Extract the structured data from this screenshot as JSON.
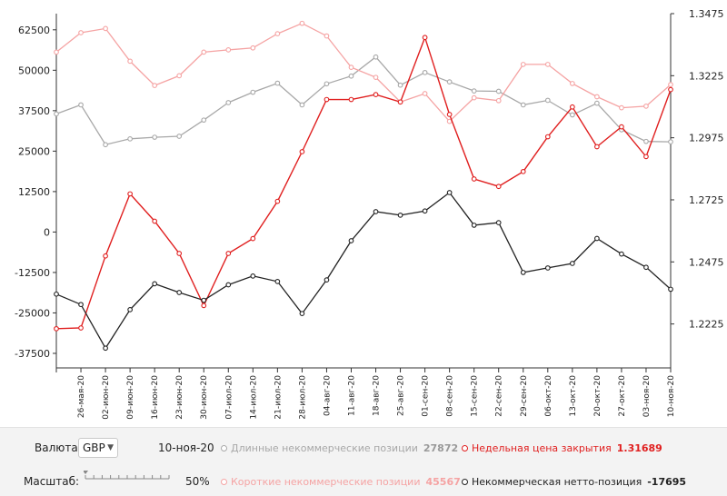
{
  "chart_data": {
    "type": "line",
    "title": "",
    "xlabel": "",
    "ylabel": "",
    "x": [
      "",
      "26-мая-20",
      "02-июн-20",
      "09-июн-20",
      "16-июн-20",
      "23-июн-20",
      "30-июн-20",
      "07-июл-20",
      "14-июл-20",
      "21-июл-20",
      "28-июл-20",
      "04-авг-20",
      "11-авг-20",
      "18-авг-20",
      "25-авг-20",
      "01-сен-20",
      "08-сен-20",
      "15-сен-20",
      "22-сен-20",
      "29-сен-20",
      "06-окт-20",
      "13-окт-20",
      "20-окт-20",
      "27-окт-20",
      "03-ноя-20",
      "10-ноя-20"
    ],
    "y_left": {
      "lim": [
        -42000,
        67500
      ],
      "ticks": [
        62500,
        50000,
        37500,
        25000,
        12500,
        0,
        -12500,
        -25000,
        -37500
      ],
      "tick_labels": [
        "62500",
        "50000",
        "37500",
        "25000",
        "12500",
        "0",
        "-12500",
        "-25000",
        "-37500"
      ]
    },
    "y_right": {
      "lim": [
        1.2048,
        1.3475
      ],
      "ticks": [
        1.3475,
        1.3225,
        1.2975,
        1.2725,
        1.2475,
        1.2225
      ],
      "tick_labels": [
        "1.3475",
        "1.3225",
        "1.2975",
        "1.2725",
        "1.2475",
        "1.2225"
      ]
    },
    "grid": false,
    "series": [
      {
        "name": "Длинные некоммерческие позиции",
        "axis": "left",
        "color": "#a8a8a8",
        "values": [
          36500,
          39300,
          27000,
          28800,
          29300,
          29600,
          34600,
          40000,
          43200,
          46000,
          39300,
          45800,
          48200,
          54100,
          45400,
          49300,
          46400,
          43600,
          43500,
          39300,
          40700,
          36200,
          39800,
          31600,
          28000,
          27872
        ]
      },
      {
        "name": "Короткие некоммерческие позиции",
        "axis": "left",
        "color": "#f5a3a3",
        "values": [
          55600,
          61600,
          62900,
          52800,
          45300,
          48300,
          55600,
          56300,
          56900,
          61300,
          64500,
          60600,
          50900,
          47800,
          40200,
          42800,
          34200,
          41500,
          40600,
          51800,
          51800,
          45900,
          41800,
          38400,
          38900,
          45567
        ]
      },
      {
        "name": "Недельная цена закрытия",
        "axis": "right",
        "color": "#e01f1f",
        "values": [
          1.2206,
          1.2209,
          1.2499,
          1.2749,
          1.2639,
          1.2509,
          1.2299,
          1.2509,
          1.2569,
          1.2719,
          1.2919,
          1.3129,
          1.3129,
          1.3149,
          1.3119,
          1.3379,
          1.3069,
          1.2809,
          1.2779,
          1.2839,
          1.2979,
          1.3099,
          1.2939,
          1.3019,
          1.2899,
          1.31689
        ]
      },
      {
        "name": "Некоммерческая нетто-позиция",
        "axis": "left",
        "color": "#222222",
        "values": [
          -19200,
          -22400,
          -35900,
          -24000,
          -16000,
          -18700,
          -21100,
          -16300,
          -13600,
          -15300,
          -25200,
          -14800,
          -2700,
          6300,
          5200,
          6500,
          12200,
          2100,
          2900,
          -12500,
          -11100,
          -9700,
          -2000,
          -6800,
          -10900,
          -17695
        ]
      }
    ]
  },
  "footer": {
    "currency_label": "Валюта:",
    "currency_value": "GBP",
    "date": "10-ноя-20",
    "scale_label": "Масштаб:",
    "scale_value": "50%",
    "scale_fraction": 0.5,
    "legend": [
      {
        "name": "Длинные некоммерческие позиции",
        "value": "27872",
        "color": "#a8a8a8"
      },
      {
        "name": "Недельная цена закрытия",
        "value": "1.31689",
        "color": "#e01f1f"
      },
      {
        "name": "Короткие некоммерческие позиции",
        "value": "45567",
        "color": "#f5a3a3"
      },
      {
        "name": "Некоммерческая нетто-позиция",
        "value": "-17695",
        "color": "#222222"
      }
    ]
  }
}
